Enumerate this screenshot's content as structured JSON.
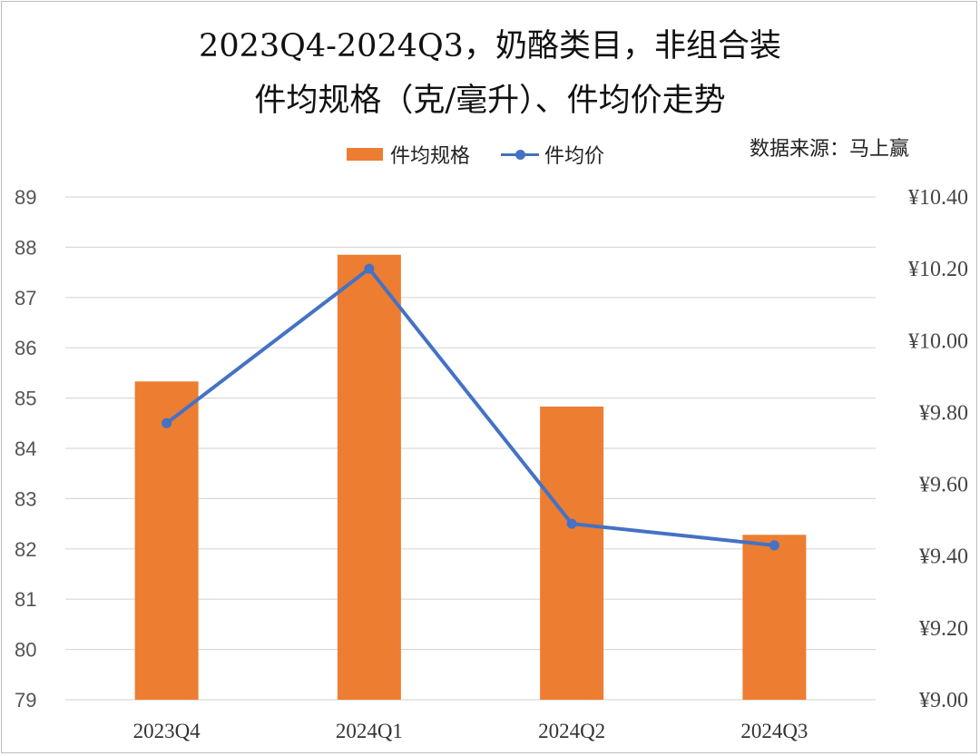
{
  "title": {
    "line1": "2023Q4-2024Q3，奶酪类目，非组合装",
    "line2": "件均规格（克/毫升）、件均价走势"
  },
  "legend": {
    "bar_label": "件均规格",
    "line_label": "件均价"
  },
  "source": "数据来源：马上赢",
  "colors": {
    "bar": "#ED7D31",
    "line": "#4472C4",
    "grid": "#D9D9D9"
  },
  "chart_data": {
    "type": "bar",
    "categories": [
      "2023Q4",
      "2024Q1",
      "2024Q2",
      "2024Q3"
    ],
    "series": [
      {
        "name": "件均规格",
        "type": "bar",
        "axis": "left",
        "values": [
          85.33,
          87.85,
          84.83,
          82.28
        ]
      },
      {
        "name": "件均价",
        "type": "line",
        "axis": "right",
        "values": [
          9.77,
          10.2,
          9.49,
          9.43
        ]
      }
    ],
    "ylim_left": [
      79,
      89
    ],
    "ytick_step_left": 1,
    "left_tick_labels": [
      "79",
      "80",
      "81",
      "82",
      "83",
      "84",
      "85",
      "86",
      "87",
      "88",
      "89"
    ],
    "ylim_right": [
      9.0,
      10.4
    ],
    "right_tick_labels": [
      "¥9.00",
      "¥9.20",
      "¥9.40",
      "¥9.60",
      "¥9.80",
      "¥10.00",
      "¥10.20",
      "¥10.40"
    ],
    "grid": true,
    "legend_position": "top-center"
  }
}
